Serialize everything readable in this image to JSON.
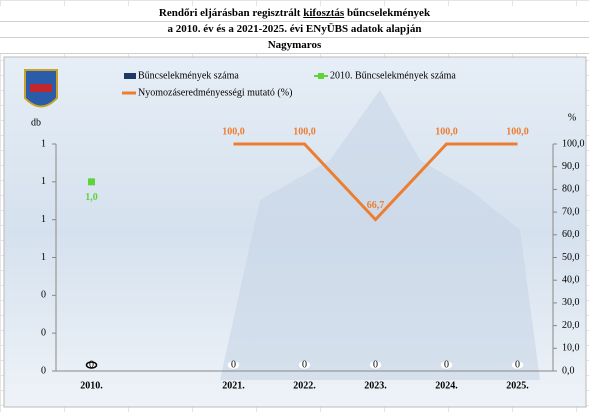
{
  "chart_data": {
    "type": "combo",
    "title": {
      "before": "Rendőri eljárásban regisztrált",
      "underlined": "kifosztás",
      "after": "bűncselekmények"
    },
    "subtitle": "a 2010. év és a 2021-2025. évi ENyÜBS adatok alapján",
    "location": "Nagymaros",
    "y_label": "db",
    "y2_label": "%",
    "categories": [
      "2010.",
      null,
      "2021.",
      "2022.",
      "2023.",
      "2024.",
      "2025."
    ],
    "ylim": [
      0,
      1.2
    ],
    "yticks": [
      0,
      {
        "value": 0.2,
        "label": "0"
      },
      {
        "value": 0.4,
        "label": "0"
      },
      {
        "value": 0.6,
        "label": "1"
      },
      {
        "value": 0.8,
        "label": "1"
      },
      {
        "value": 1.0,
        "label": "1"
      },
      {
        "value": 1.2,
        "label": "1"
      }
    ],
    "y2lim": [
      0,
      100
    ],
    "y2ticks": [
      {
        "value": 0,
        "label": "0,0"
      },
      {
        "value": 10,
        "label": "10,0"
      },
      {
        "value": 20,
        "label": "20,0"
      },
      {
        "value": 30,
        "label": "30,0"
      },
      {
        "value": 40,
        "label": "40,0"
      },
      {
        "value": 50,
        "label": "50,0"
      },
      {
        "value": 60,
        "label": "60,0"
      },
      {
        "value": 70,
        "label": "70,0"
      },
      {
        "value": 80,
        "label": "80,0"
      },
      {
        "value": 90,
        "label": "90,0"
      },
      {
        "value": 100,
        "label": "100,0"
      }
    ],
    "series": [
      {
        "name": "Bűncselekmények száma",
        "type": "bar",
        "color": "#203864",
        "values": [
          0,
          null,
          0,
          0,
          0,
          0,
          0
        ]
      },
      {
        "name": "2010. Bűncselekmények száma",
        "type": "scatter",
        "color": "#5fd33a",
        "values": [
          1.0,
          null,
          null,
          null,
          null,
          null,
          null
        ],
        "value_labels": [
          "1,0",
          null,
          null,
          null,
          null,
          null,
          null
        ]
      },
      {
        "name": "Nyomozáseredményességi mutató (%)",
        "type": "line",
        "axis": "y2",
        "color": "#ed7d31",
        "values": [
          null,
          null,
          100,
          100,
          66.7,
          100,
          100
        ],
        "value_labels": [
          null,
          null,
          "100,0",
          "100,0",
          "66,7",
          "100,0",
          "100,0"
        ]
      }
    ]
  }
}
